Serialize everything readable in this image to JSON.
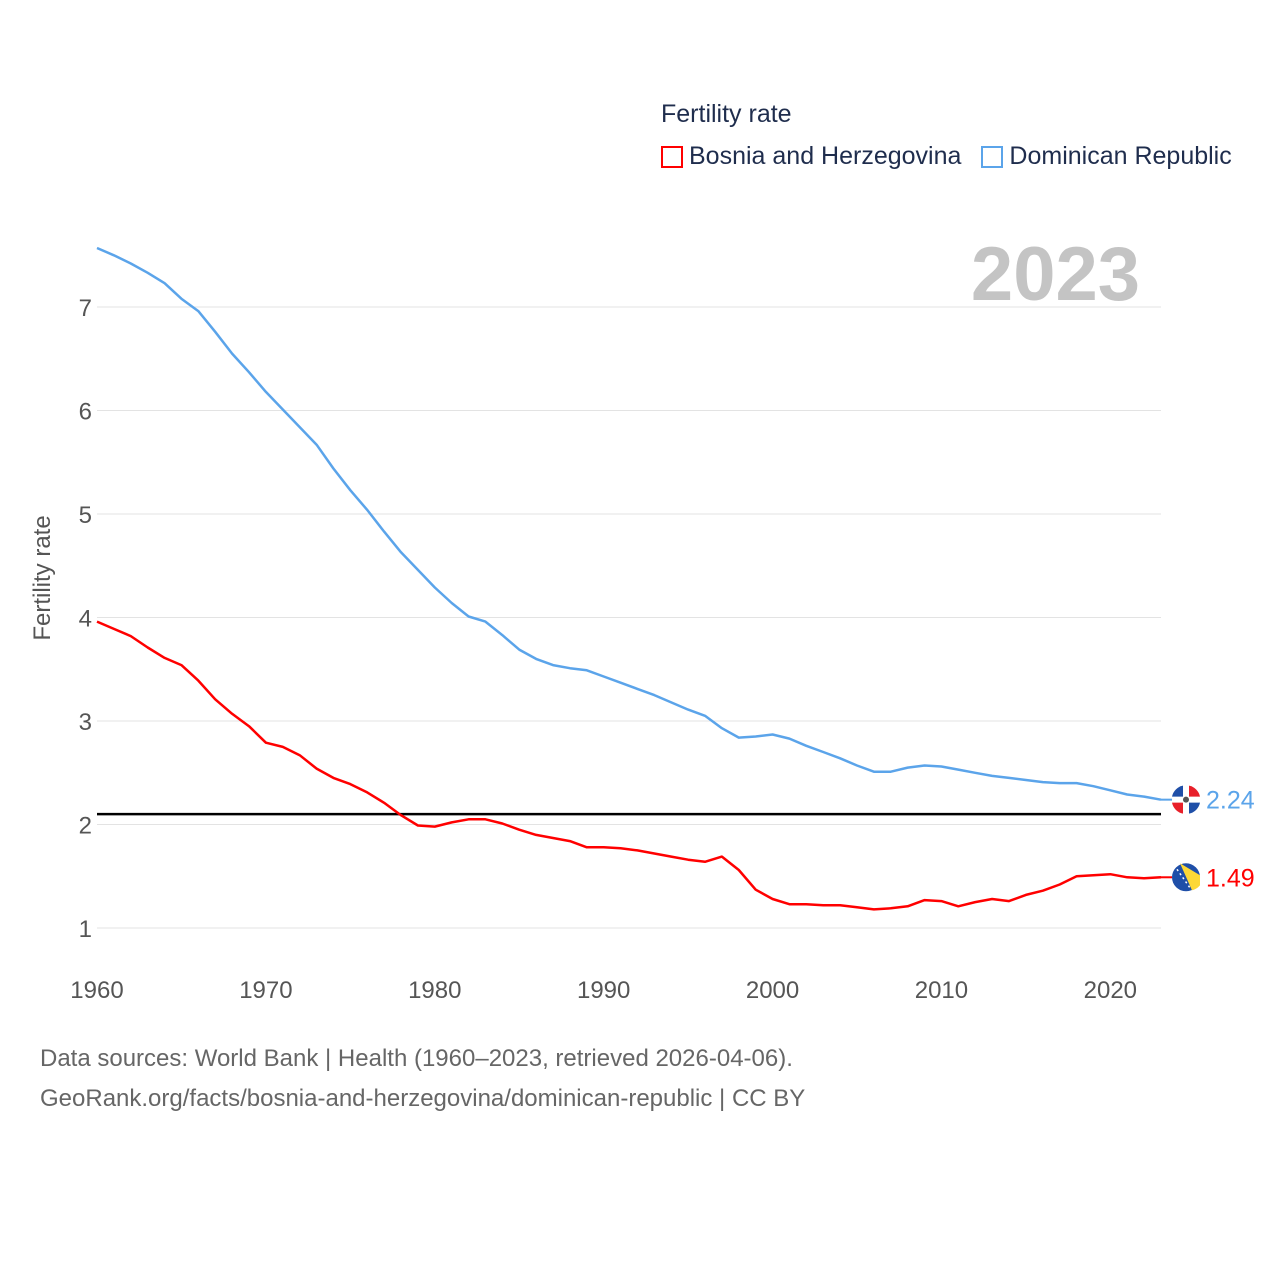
{
  "legend": {
    "title": "Fertility rate",
    "items": [
      {
        "label": "Bosnia and Herzegovina",
        "color": "#ff0000"
      },
      {
        "label": "Dominican Republic",
        "color": "#5ba4ea"
      }
    ]
  },
  "footer": {
    "line1": "Data sources: World Bank | Health (1960–2023, retrieved 2026-04-06).",
    "line2": "GeoRank.org/facts/bosnia-and-herzegovina/dominican-republic | CC BY"
  },
  "chart_data": {
    "type": "line",
    "title": "Fertility rate",
    "year_label": "2023",
    "xlabel": "",
    "ylabel": "Fertility rate",
    "xlim": [
      1960,
      2023
    ],
    "ylim": [
      0.65,
      7.8
    ],
    "x_ticks": [
      "1960",
      "1970",
      "1980",
      "1990",
      "2000",
      "2010",
      "2020"
    ],
    "y_ticks": [
      "1",
      "2",
      "3",
      "4",
      "5",
      "6",
      "7"
    ],
    "grid": true,
    "legend_position": "top-right",
    "reference_line": {
      "y": 2.1,
      "color": "#000000"
    },
    "x": [
      1960,
      1961,
      1962,
      1963,
      1964,
      1965,
      1966,
      1967,
      1968,
      1969,
      1970,
      1971,
      1972,
      1973,
      1974,
      1975,
      1976,
      1977,
      1978,
      1979,
      1980,
      1981,
      1982,
      1983,
      1984,
      1985,
      1986,
      1987,
      1988,
      1989,
      1990,
      1991,
      1992,
      1993,
      1994,
      1995,
      1996,
      1997,
      1998,
      1999,
      2000,
      2001,
      2002,
      2003,
      2004,
      2005,
      2006,
      2007,
      2008,
      2009,
      2010,
      2011,
      2012,
      2013,
      2014,
      2015,
      2016,
      2017,
      2018,
      2019,
      2020,
      2021,
      2022,
      2023
    ],
    "series": [
      {
        "name": "Bosnia and Herzegovina",
        "color": "#ff0000",
        "end_label": "1.49",
        "values": [
          3.96,
          3.89,
          3.82,
          3.71,
          3.61,
          3.54,
          3.39,
          3.21,
          3.07,
          2.95,
          2.79,
          2.75,
          2.67,
          2.54,
          2.45,
          2.39,
          2.31,
          2.21,
          2.09,
          1.99,
          1.98,
          2.02,
          2.05,
          2.05,
          2.01,
          1.95,
          1.9,
          1.87,
          1.84,
          1.78,
          1.78,
          1.77,
          1.75,
          1.72,
          1.69,
          1.66,
          1.64,
          1.69,
          1.56,
          1.37,
          1.28,
          1.23,
          1.23,
          1.22,
          1.22,
          1.2,
          1.18,
          1.19,
          1.21,
          1.27,
          1.26,
          1.21,
          1.25,
          1.28,
          1.26,
          1.32,
          1.36,
          1.42,
          1.5,
          1.51,
          1.52,
          1.49,
          1.48,
          1.49
        ]
      },
      {
        "name": "Dominican Republic",
        "color": "#5ba4ea",
        "end_label": "2.24",
        "values": [
          7.57,
          7.5,
          7.42,
          7.33,
          7.23,
          7.08,
          6.96,
          6.76,
          6.55,
          6.37,
          6.18,
          6.01,
          5.84,
          5.67,
          5.44,
          5.23,
          5.04,
          4.83,
          4.63,
          4.46,
          4.29,
          4.14,
          4.01,
          3.96,
          3.83,
          3.69,
          3.6,
          3.54,
          3.51,
          3.49,
          3.43,
          3.37,
          3.31,
          3.25,
          3.18,
          3.11,
          3.05,
          2.93,
          2.84,
          2.85,
          2.87,
          2.83,
          2.76,
          2.7,
          2.64,
          2.57,
          2.51,
          2.51,
          2.55,
          2.57,
          2.56,
          2.53,
          2.5,
          2.47,
          2.45,
          2.43,
          2.41,
          2.4,
          2.4,
          2.37,
          2.33,
          2.29,
          2.27,
          2.24
        ]
      }
    ]
  }
}
